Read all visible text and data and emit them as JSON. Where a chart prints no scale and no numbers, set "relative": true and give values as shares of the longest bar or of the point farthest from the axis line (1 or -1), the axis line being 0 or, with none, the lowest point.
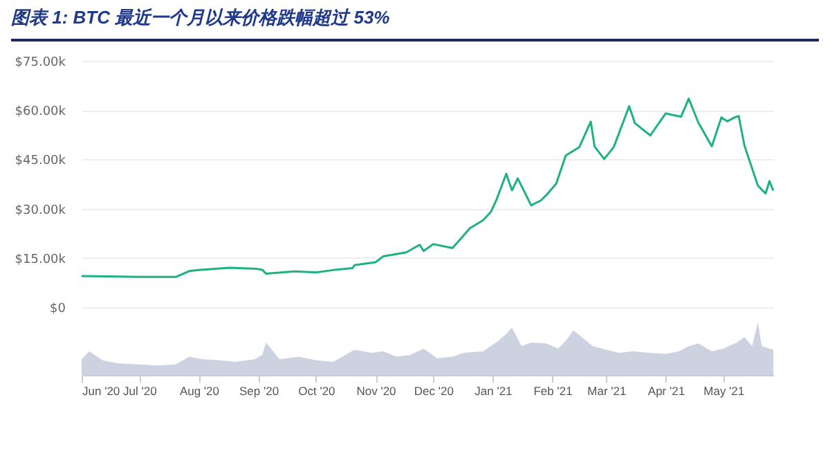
{
  "chart_data": [
    {
      "type": "line",
      "title": "图表 1:  BTC 最近一个月以来价格跌幅超过 53%",
      "color": "#1db184",
      "x": [
        "2020-06-01",
        "2020-06-15",
        "2020-07-01",
        "2020-07-20",
        "2020-07-27",
        "2020-08-01",
        "2020-08-17",
        "2020-08-31",
        "2020-09-03",
        "2020-09-05",
        "2020-09-20",
        "2020-10-01",
        "2020-10-10",
        "2020-10-20",
        "2020-10-21",
        "2020-11-01",
        "2020-11-05",
        "2020-11-17",
        "2020-11-24",
        "2020-11-26",
        "2020-12-01",
        "2020-12-11",
        "2020-12-16",
        "2020-12-20",
        "2020-12-27",
        "2020-12-31",
        "2021-01-03",
        "2021-01-08",
        "2021-01-11",
        "2021-01-14",
        "2021-01-21",
        "2021-01-26",
        "2021-01-29",
        "2021-02-03",
        "2021-02-08",
        "2021-02-15",
        "2021-02-21",
        "2021-02-23",
        "2021-02-28",
        "2021-03-05",
        "2021-03-13",
        "2021-03-16",
        "2021-03-24",
        "2021-04-01",
        "2021-04-09",
        "2021-04-13",
        "2021-04-18",
        "2021-04-25",
        "2021-04-30",
        "2021-05-03",
        "2021-05-07",
        "2021-05-09",
        "2021-05-12",
        "2021-05-19",
        "2021-05-23",
        "2021-05-25",
        "2021-05-27"
      ],
      "values": [
        9500,
        9400,
        9200,
        9200,
        11000,
        11300,
        12000,
        11700,
        11400,
        10200,
        10900,
        10600,
        11300,
        11900,
        12800,
        13700,
        15500,
        16700,
        19000,
        17100,
        19200,
        18000,
        21300,
        24000,
        26500,
        29000,
        32800,
        40600,
        35600,
        39200,
        31000,
        32500,
        34200,
        37600,
        46200,
        48700,
        56500,
        48900,
        45100,
        48800,
        61200,
        56000,
        52300,
        59000,
        58000,
        63500,
        56200,
        49000,
        57800,
        56600,
        57800,
        58200,
        49200,
        37000,
        34600,
        38400,
        35500
      ],
      "xlim": [
        "2020-06-01",
        "2021-05-27"
      ],
      "ylim": [
        0,
        75000
      ],
      "yticks": [
        {
          "value": 0,
          "label": "$0"
        },
        {
          "value": 15000,
          "label": "$15.00k"
        },
        {
          "value": 30000,
          "label": "$30.00k"
        },
        {
          "value": 45000,
          "label": "$45.00k"
        },
        {
          "value": 60000,
          "label": "$60.00k"
        },
        {
          "value": 75000,
          "label": "$75.00k"
        }
      ],
      "grid": "y",
      "tick_labels": "y"
    },
    {
      "type": "area",
      "relative": true,
      "color": "#cdd2e0",
      "tick_labels": "x",
      "x": [
        "2020-06-01",
        "2020-06-05",
        "2020-06-12",
        "2020-06-20",
        "2020-07-01",
        "2020-07-10",
        "2020-07-20",
        "2020-07-27",
        "2020-08-03",
        "2020-08-12",
        "2020-08-20",
        "2020-08-30",
        "2020-09-03",
        "2020-09-05",
        "2020-09-12",
        "2020-09-22",
        "2020-10-01",
        "2020-10-10",
        "2020-10-21",
        "2020-10-30",
        "2020-11-05",
        "2020-11-12",
        "2020-11-19",
        "2020-11-26",
        "2020-12-03",
        "2020-12-11",
        "2020-12-17",
        "2020-12-27",
        "2021-01-04",
        "2021-01-08",
        "2021-01-11",
        "2021-01-16",
        "2021-01-21",
        "2021-01-29",
        "2021-02-04",
        "2021-02-08",
        "2021-02-12",
        "2021-02-22",
        "2021-03-01",
        "2021-03-08",
        "2021-03-15",
        "2021-03-24",
        "2021-04-01",
        "2021-04-08",
        "2021-04-13",
        "2021-04-18",
        "2021-04-25",
        "2021-05-01",
        "2021-05-08",
        "2021-05-12",
        "2021-05-16",
        "2021-05-19",
        "2021-05-21",
        "2021-05-27"
      ],
      "values": [
        0.3,
        0.45,
        0.28,
        0.22,
        0.2,
        0.18,
        0.2,
        0.35,
        0.3,
        0.28,
        0.25,
        0.3,
        0.38,
        0.62,
        0.3,
        0.35,
        0.28,
        0.25,
        0.48,
        0.42,
        0.45,
        0.35,
        0.38,
        0.5,
        0.32,
        0.35,
        0.42,
        0.45,
        0.65,
        0.78,
        0.9,
        0.55,
        0.62,
        0.6,
        0.5,
        0.65,
        0.85,
        0.55,
        0.48,
        0.42,
        0.45,
        0.42,
        0.4,
        0.45,
        0.55,
        0.6,
        0.45,
        0.5,
        0.62,
        0.72,
        0.55,
        1,
        0.55,
        0.48
      ],
      "xlim": [
        "2020-06-01",
        "2021-05-27"
      ],
      "xticks": [
        {
          "value": "2020-06-01",
          "label": "Jun '20"
        },
        {
          "value": "2020-07-01",
          "label": "Jul '20"
        },
        {
          "value": "2020-08-01",
          "label": "Aug '20"
        },
        {
          "value": "2020-09-01",
          "label": "Sep '20"
        },
        {
          "value": "2020-10-01",
          "label": "Oct '20"
        },
        {
          "value": "2020-11-01",
          "label": "Nov '20"
        },
        {
          "value": "2020-12-01",
          "label": "Dec '20"
        },
        {
          "value": "2021-01-01",
          "label": "Jan '21"
        },
        {
          "value": "2021-02-01",
          "label": "Feb '21"
        },
        {
          "value": "2021-03-01",
          "label": "Mar '21"
        },
        {
          "value": "2021-04-01",
          "label": "Apr '21"
        },
        {
          "value": "2021-05-01",
          "label": "May '21"
        }
      ]
    }
  ]
}
